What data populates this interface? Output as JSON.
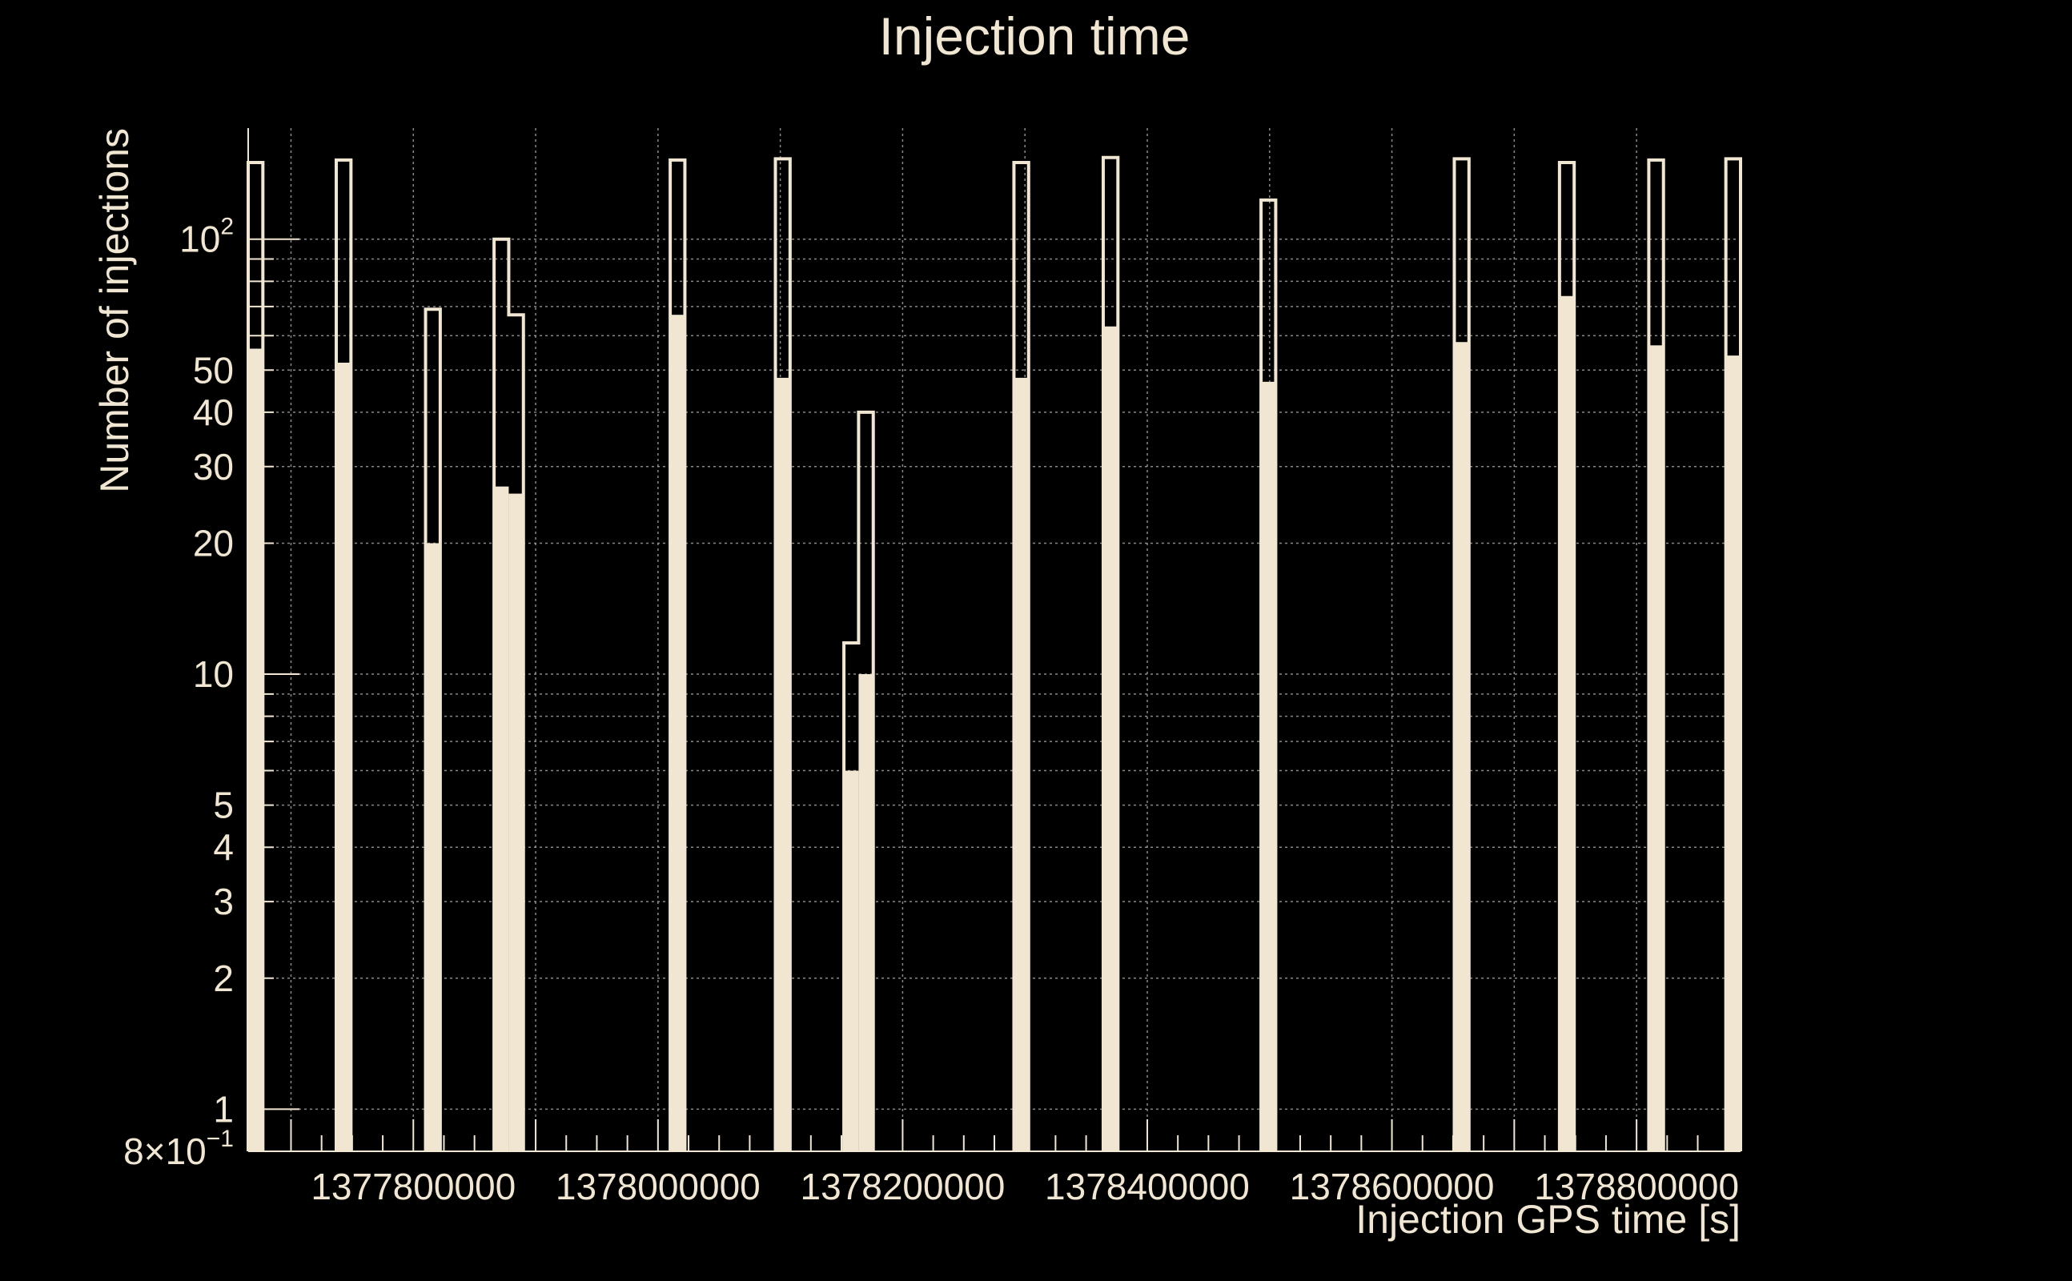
{
  "colors": {
    "background": "#000000",
    "foreground": "#f0e6d2",
    "grid": "#aaaaaa"
  },
  "chart_data": {
    "type": "bar",
    "title": "Injection time",
    "xlabel": "Injection GPS time [s]",
    "ylabel": "Number of injections",
    "yscale": "log",
    "ylim": [
      0.8,
      180
    ],
    "xlim": [
      1377665000,
      1378885000
    ],
    "grid": true,
    "x_ticks": [
      1377800000,
      1378000000,
      1378200000,
      1378400000,
      1378600000,
      1378800000
    ],
    "x_tick_labels": [
      "1377800000",
      "1378000000",
      "1378200000",
      "1378400000",
      "1378600000",
      "1378800000"
    ],
    "y_ticks": [
      1,
      2,
      3,
      4,
      5,
      10,
      20,
      30,
      40,
      50,
      100
    ],
    "y_tick_labels": [
      "1",
      "2",
      "3",
      "4",
      "5",
      "10",
      "20",
      "30",
      "40",
      "50"
    ],
    "y_tick_label_100": {
      "base": "10",
      "exponent": "2"
    },
    "y_bottom_label": {
      "mantissa": "8",
      "times": "×",
      "base": "10",
      "exponent": "−1"
    },
    "bin_width": 12000,
    "series": [
      {
        "style": "outline",
        "bins": [
          {
            "x": 1377665000,
            "y": 150
          },
          {
            "x": 1377737000,
            "y": 152
          },
          {
            "x": 1377810000,
            "y": 69
          },
          {
            "x": 1377866000,
            "y": 100
          },
          {
            "x": 1377878000,
            "y": 67
          },
          {
            "x": 1378010000,
            "y": 152
          },
          {
            "x": 1378096000,
            "y": 153
          },
          {
            "x": 1378152000,
            "y": 11.8
          },
          {
            "x": 1378164000,
            "y": 40
          },
          {
            "x": 1378291000,
            "y": 150
          },
          {
            "x": 1378364000,
            "y": 154
          },
          {
            "x": 1378493000,
            "y": 123
          },
          {
            "x": 1378651000,
            "y": 153
          },
          {
            "x": 1378737000,
            "y": 150
          },
          {
            "x": 1378810000,
            "y": 152
          },
          {
            "x": 1378873000,
            "y": 153
          }
        ]
      },
      {
        "style": "filled",
        "bins": [
          {
            "x": 1377665000,
            "y": 56
          },
          {
            "x": 1377737000,
            "y": 52
          },
          {
            "x": 1377810000,
            "y": 20
          },
          {
            "x": 1377866000,
            "y": 27
          },
          {
            "x": 1377878000,
            "y": 26
          },
          {
            "x": 1378010000,
            "y": 67
          },
          {
            "x": 1378096000,
            "y": 48
          },
          {
            "x": 1378152000,
            "y": 6
          },
          {
            "x": 1378164000,
            "y": 10
          },
          {
            "x": 1378291000,
            "y": 48
          },
          {
            "x": 1378364000,
            "y": 63
          },
          {
            "x": 1378493000,
            "y": 47
          },
          {
            "x": 1378651000,
            "y": 58
          },
          {
            "x": 1378737000,
            "y": 74
          },
          {
            "x": 1378810000,
            "y": 57
          },
          {
            "x": 1378873000,
            "y": 54
          }
        ]
      }
    ]
  }
}
